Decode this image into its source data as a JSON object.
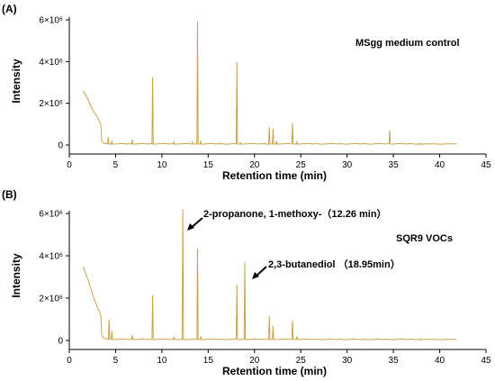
{
  "chart_data": [
    {
      "type": "line",
      "panel_label": "(A)",
      "annotation": "MSgg medium control",
      "xlabel": "Retention time (min)",
      "ylabel": "Intensity",
      "xlim": [
        0,
        45
      ],
      "ylim": [
        0,
        6000000
      ],
      "x_ticks": [
        0,
        5,
        10,
        15,
        20,
        25,
        30,
        35,
        40,
        45
      ],
      "x_tick_labels": [
        "0",
        "5",
        "10",
        "15",
        "20",
        "25",
        "30",
        "35",
        "40",
        "45"
      ],
      "y_ticks": [
        0,
        2000000,
        4000000,
        6000000
      ],
      "y_tick_labels": [
        "0",
        "2×10⁶",
        "4×10⁶",
        "6×10⁶"
      ],
      "color": "#c8a24a",
      "baseline": 40000,
      "start_curve": [
        [
          1.5,
          2600000
        ],
        [
          2.0,
          2200000
        ],
        [
          2.5,
          1700000
        ],
        [
          3.0,
          1350000
        ],
        [
          3.4,
          1000000
        ],
        [
          3.5,
          200000
        ],
        [
          3.7,
          80000
        ]
      ],
      "peaks": [
        [
          4.2,
          380000
        ],
        [
          4.6,
          200000
        ],
        [
          6.8,
          250000
        ],
        [
          9.0,
          3250000
        ],
        [
          11.3,
          150000
        ],
        [
          13.3,
          150000
        ],
        [
          13.85,
          5950000
        ],
        [
          14.2,
          200000
        ],
        [
          18.1,
          3980000
        ],
        [
          18.5,
          120000
        ],
        [
          21.6,
          850000
        ],
        [
          22.0,
          800000
        ],
        [
          22.4,
          200000
        ],
        [
          24.1,
          1050000
        ],
        [
          24.6,
          150000
        ],
        [
          34.6,
          700000
        ],
        [
          38.0,
          80000
        ]
      ],
      "x_end": 41.8
    },
    {
      "type": "line",
      "panel_label": "(B)",
      "annotation": "SQR9 VOCs",
      "xlabel": "Retention time (min)",
      "ylabel": "Intensity",
      "xlim": [
        0,
        45
      ],
      "ylim": [
        0,
        6000000
      ],
      "x_ticks": [
        0,
        5,
        10,
        15,
        20,
        25,
        30,
        35,
        40,
        45
      ],
      "x_tick_labels": [
        "0",
        "5",
        "10",
        "15",
        "20",
        "25",
        "30",
        "35",
        "40",
        "45"
      ],
      "y_ticks": [
        0,
        2000000,
        4000000,
        6000000
      ],
      "y_tick_labels": [
        "0",
        "2×10⁶",
        "4×10⁶",
        "6×10⁶"
      ],
      "color": "#c8a24a",
      "baseline": 40000,
      "start_curve": [
        [
          1.5,
          3500000
        ],
        [
          2.0,
          2900000
        ],
        [
          2.5,
          2200000
        ],
        [
          3.0,
          1600000
        ],
        [
          3.4,
          1200000
        ],
        [
          3.5,
          250000
        ],
        [
          3.7,
          100000
        ]
      ],
      "peaks": [
        [
          4.3,
          1000000
        ],
        [
          4.6,
          450000
        ],
        [
          6.8,
          250000
        ],
        [
          9.0,
          2150000
        ],
        [
          11.3,
          150000
        ],
        [
          12.26,
          6200000
        ],
        [
          13.85,
          4350000
        ],
        [
          14.2,
          200000
        ],
        [
          18.1,
          2650000
        ],
        [
          18.95,
          3700000
        ],
        [
          21.6,
          1150000
        ],
        [
          22.0,
          700000
        ],
        [
          24.1,
          950000
        ],
        [
          24.6,
          200000
        ],
        [
          38.0,
          80000
        ]
      ],
      "x_end": 41.8,
      "peak_labels": [
        {
          "text": "2-propanone, 1-methoxy-（12.26 min）",
          "x": 12.26
        },
        {
          "text": "2,3-butanediol （18.95min）",
          "x": 18.95
        }
      ]
    }
  ]
}
